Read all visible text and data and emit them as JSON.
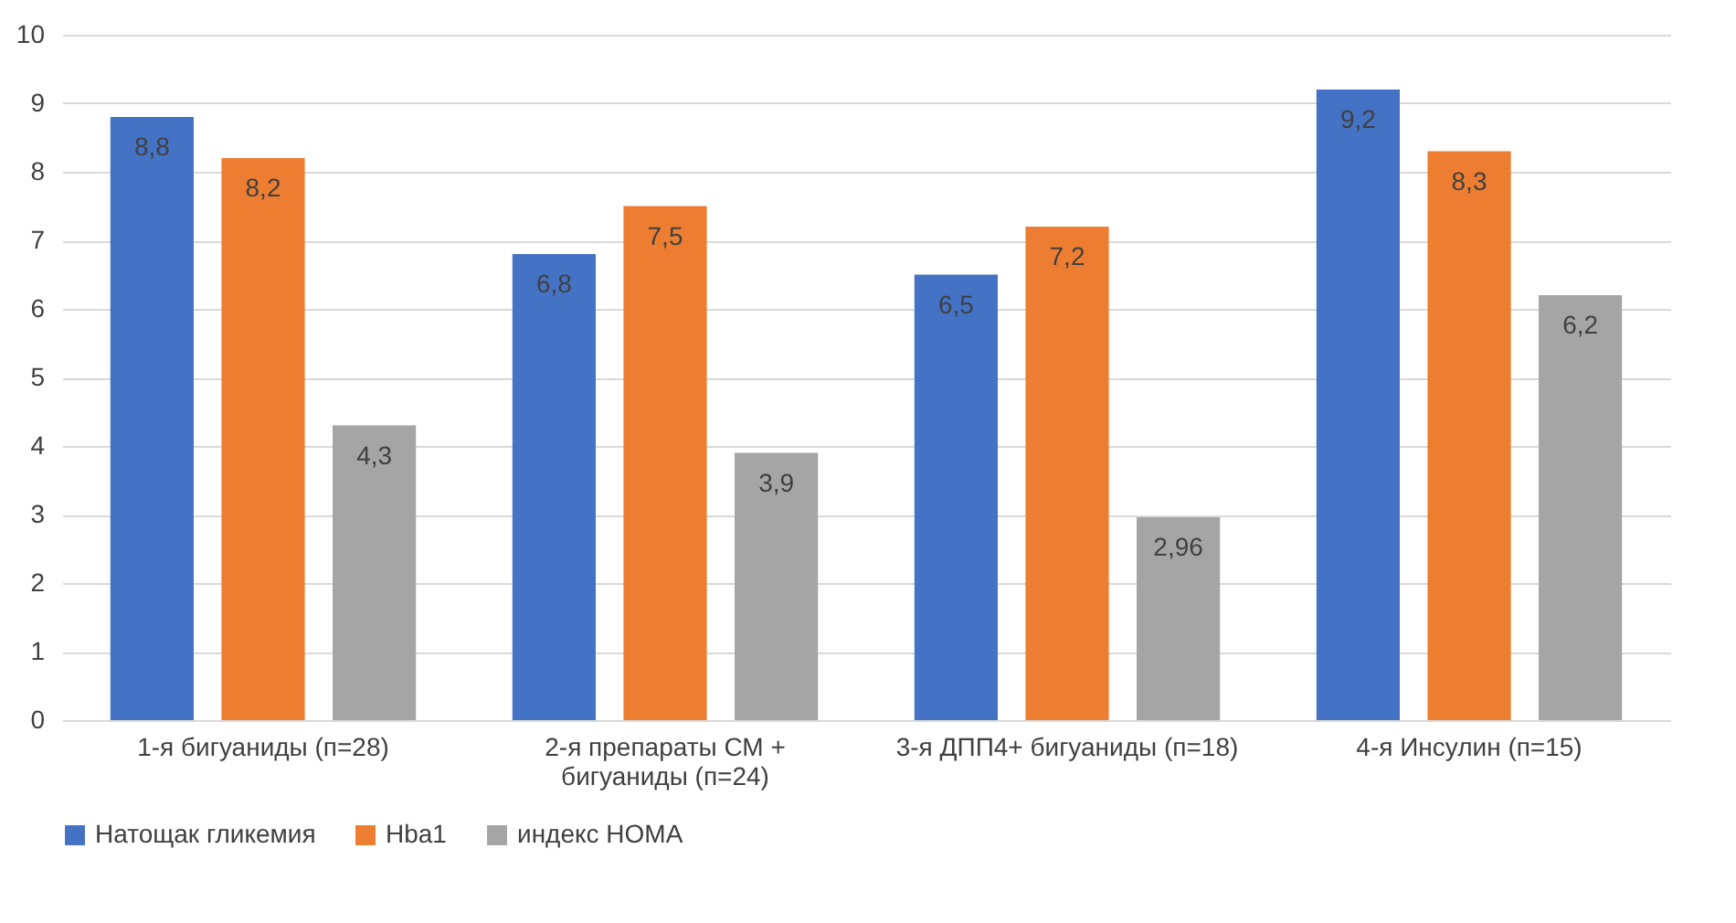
{
  "chart_data": {
    "type": "bar",
    "categories": [
      "1-я бигуаниды (п=28)",
      "2-я препараты СМ + бигуаниды (п=24)",
      "3-я ДПП4+ бигуаниды (п=18)",
      "4-я Инсулин (п=15)"
    ],
    "series": [
      {
        "name": "Натощак гликемия",
        "color": "#4472c4",
        "values": [
          8.8,
          6.8,
          6.5,
          9.2
        ],
        "value_labels": [
          "8,8",
          "6,8",
          "6,5",
          "9,2"
        ]
      },
      {
        "name": "Hba1",
        "color": "#ed7d31",
        "values": [
          8.2,
          7.5,
          7.2,
          8.3
        ],
        "value_labels": [
          "8,2",
          "7,5",
          "7,2",
          "8,3"
        ]
      },
      {
        "name": "индекс HOMA",
        "color": "#a5a5a5",
        "values": [
          4.3,
          3.9,
          2.96,
          6.2
        ],
        "value_labels": [
          "4,3",
          "3,9",
          "2,96",
          "6,2"
        ]
      }
    ],
    "ylim": [
      0,
      10
    ],
    "yticks": [
      0,
      1,
      2,
      3,
      4,
      5,
      6,
      7,
      8,
      9,
      10
    ],
    "grid": "y",
    "legend": "bottom"
  }
}
